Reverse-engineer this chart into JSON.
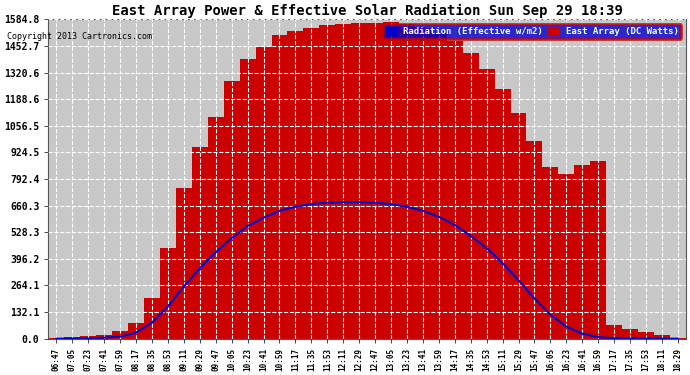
{
  "title": "East Array Power & Effective Solar Radiation Sun Sep 29 18:39",
  "copyright": "Copyright 2013 Cartronics.com",
  "legend_radiation": "Radiation (Effective w/m2)",
  "legend_east": "East Array (DC Watts)",
  "bg_color": "#ffffff",
  "plot_bg_color": "#c8c8c8",
  "grid_color": "#ffffff",
  "radiation_color": "#0000cc",
  "east_array_fill": "#cc0000",
  "title_color": "#000000",
  "tick_color": "#000000",
  "y_max": 1584.8,
  "y_ticks": [
    0.0,
    132.1,
    264.1,
    396.2,
    528.3,
    660.3,
    792.4,
    924.5,
    1056.5,
    1188.6,
    1320.6,
    1452.7,
    1584.8
  ],
  "x_labels": [
    "06:47",
    "07:05",
    "07:23",
    "07:41",
    "07:59",
    "08:17",
    "08:35",
    "08:53",
    "09:11",
    "09:29",
    "09:47",
    "10:05",
    "10:23",
    "10:41",
    "10:59",
    "11:17",
    "11:35",
    "11:53",
    "12:11",
    "12:29",
    "12:47",
    "13:05",
    "13:23",
    "13:41",
    "13:59",
    "14:17",
    "14:35",
    "14:53",
    "15:11",
    "15:29",
    "15:47",
    "16:05",
    "16:23",
    "16:41",
    "16:59",
    "17:17",
    "17:35",
    "17:53",
    "18:11",
    "18:29"
  ],
  "n_points": 40,
  "east_array_values": [
    5,
    8,
    12,
    20,
    40,
    80,
    200,
    450,
    750,
    950,
    1100,
    1280,
    1390,
    1450,
    1510,
    1530,
    1545,
    1555,
    1560,
    1565,
    1568,
    1570,
    1560,
    1545,
    1520,
    1480,
    1420,
    1340,
    1240,
    1120,
    980,
    850,
    820,
    860,
    880,
    70,
    50,
    35,
    20,
    5
  ],
  "radiation_values": [
    0,
    0,
    0,
    5,
    10,
    30,
    80,
    160,
    260,
    350,
    430,
    500,
    560,
    600,
    635,
    655,
    668,
    675,
    678,
    678,
    675,
    668,
    655,
    635,
    605,
    565,
    510,
    450,
    375,
    290,
    200,
    120,
    60,
    25,
    8,
    2,
    0,
    0,
    0,
    0
  ]
}
